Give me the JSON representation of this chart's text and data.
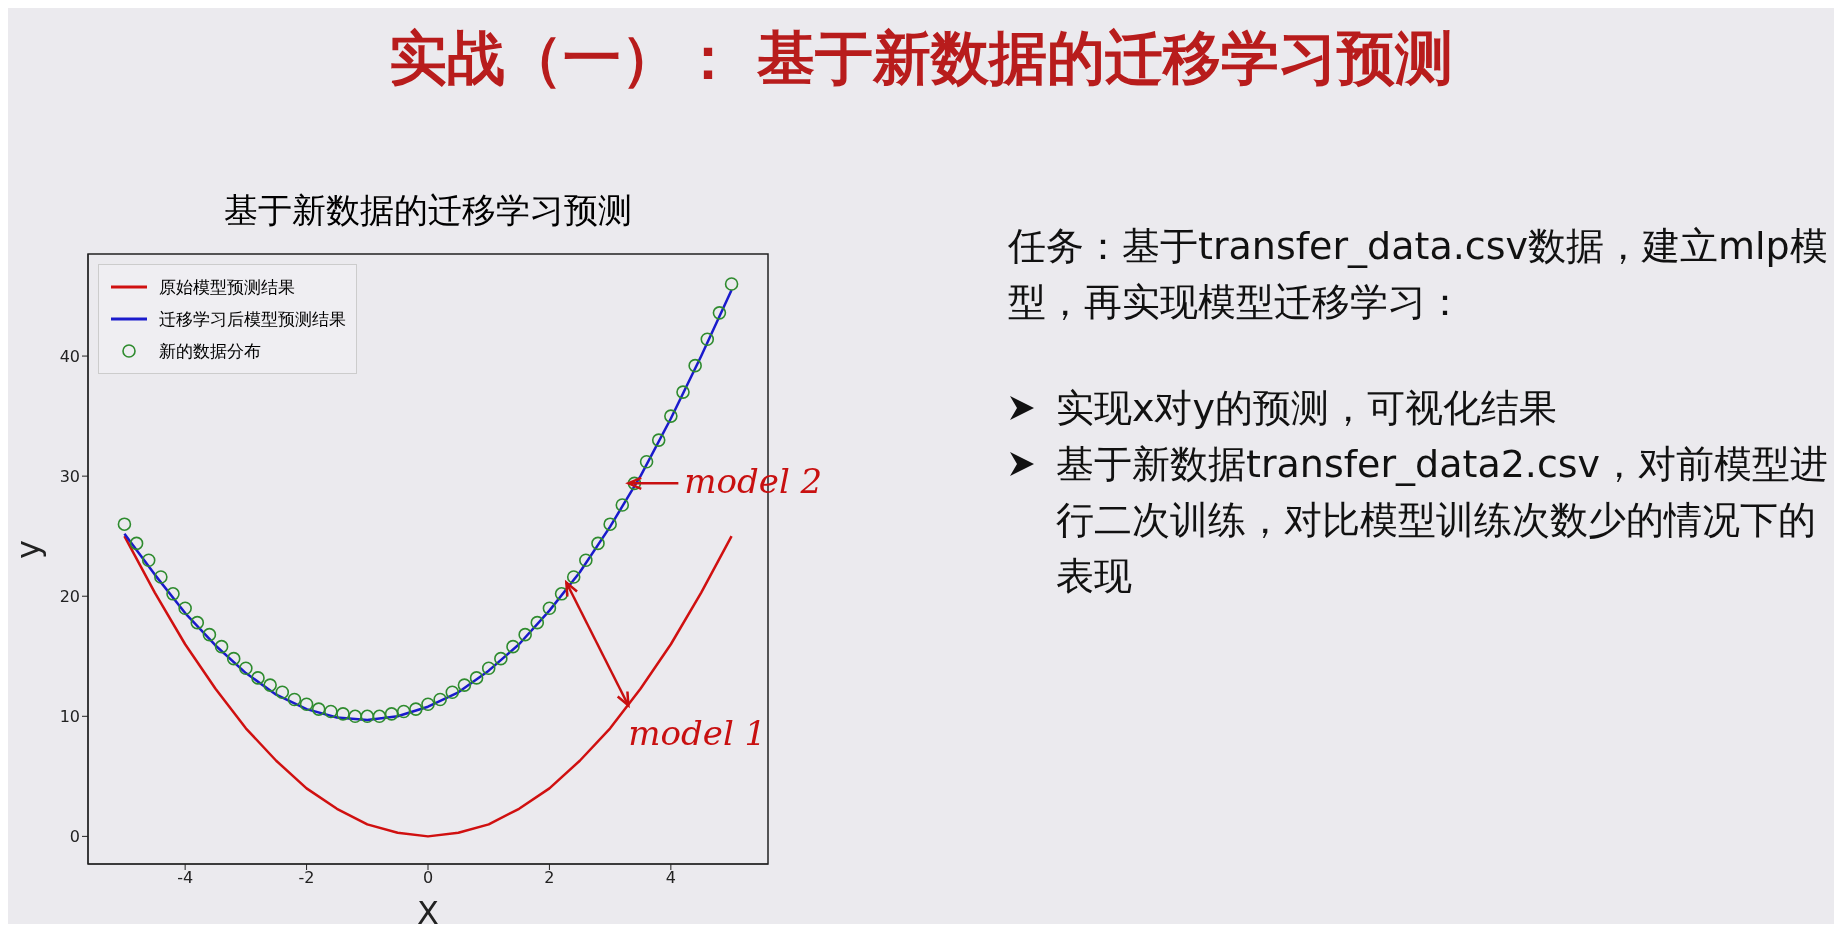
{
  "chart_data": {
    "type": "line",
    "title": "基于新数据的迁移学习预测",
    "xlabel": "X",
    "ylabel": "y",
    "xlim": [
      -5.6,
      5.6
    ],
    "xticks": [
      -4,
      -2,
      0,
      2,
      4
    ],
    "ylim": [
      -2.3,
      48.5
    ],
    "yticks": [
      0,
      10,
      20,
      30,
      40
    ],
    "legend": "top left",
    "series": [
      {
        "name": "原始模型预测结果",
        "color": "#d01010",
        "x": [
          -5,
          -4.5,
          -4,
          -3.5,
          -3,
          -2.5,
          -2,
          -1.5,
          -1,
          -0.5,
          0,
          0.5,
          1,
          1.5,
          2,
          2.5,
          3,
          3.5,
          4,
          4.5,
          5
        ],
        "values": [
          25,
          20.3,
          16,
          12.3,
          9,
          6.3,
          4,
          2.3,
          1,
          0.3,
          0,
          0.3,
          1,
          2.3,
          4,
          6.3,
          9,
          12.3,
          16,
          20.3,
          25
        ]
      },
      {
        "name": "迁移学习后模型预测结果",
        "color": "#1a1acc",
        "x": [
          -5,
          -4.5,
          -4,
          -3.5,
          -3,
          -2.5,
          -2,
          -1.5,
          -1,
          -0.5,
          0,
          0.5,
          1,
          1.5,
          2,
          2.5,
          3,
          3.5,
          4,
          4.5,
          5
        ],
        "values": [
          25.2,
          21.8,
          18.6,
          15.9,
          13.6,
          11.8,
          10.6,
          9.9,
          9.7,
          10.0,
          10.8,
          12.0,
          13.8,
          16.0,
          18.8,
          22.0,
          25.8,
          30.0,
          34.8,
          40.0,
          45.5
        ]
      },
      {
        "name": "新的数据分布",
        "type": "scatter",
        "marker": "circle",
        "color": "#2e8b2e",
        "x": [
          -5,
          -4.8,
          -4.6,
          -4.4,
          -4.2,
          -4,
          -3.8,
          -3.6,
          -3.4,
          -3.2,
          -3,
          -2.8,
          -2.6,
          -2.4,
          -2.2,
          -2,
          -1.8,
          -1.6,
          -1.4,
          -1.2,
          -1,
          -0.8,
          -0.6,
          -0.4,
          -0.2,
          0,
          0.2,
          0.4,
          0.6,
          0.8,
          1,
          1.2,
          1.4,
          1.6,
          1.8,
          2,
          2.2,
          2.4,
          2.6,
          2.8,
          3,
          3.2,
          3.4,
          3.6,
          3.8,
          4,
          4.2,
          4.4,
          4.6,
          4.8,
          5
        ],
        "values": [
          26,
          24.4,
          23,
          21.6,
          20.2,
          19,
          17.8,
          16.8,
          15.8,
          14.8,
          14,
          13.2,
          12.6,
          12,
          11.4,
          11,
          10.6,
          10.4,
          10.2,
          10,
          10,
          10,
          10.2,
          10.4,
          10.6,
          11,
          11.4,
          12,
          12.6,
          13.2,
          14,
          14.8,
          15.8,
          16.8,
          17.8,
          19,
          20.2,
          21.6,
          23,
          24.4,
          26,
          27.6,
          29.4,
          31.2,
          33,
          35,
          37,
          39.2,
          41.4,
          43.6,
          46
        ]
      }
    ],
    "annotations": [
      "实战（一）： 基于新数据的迁移学习预测",
      "任务：基于transfer_data.csv数据，建立mlp模型，再实现模型迁移学习：",
      "实现x对y的预测，可视化结果",
      "基于新数据transfer_data2.csv，对前模型进行二次训练，对比模型训练次数少的情况下的表现",
      {
        "text": "model 2",
        "x": 3.3,
        "y": 29.4
      },
      {
        "text": "model 1",
        "x": 3.3,
        "y": 10.9
      }
    ]
  }
}
